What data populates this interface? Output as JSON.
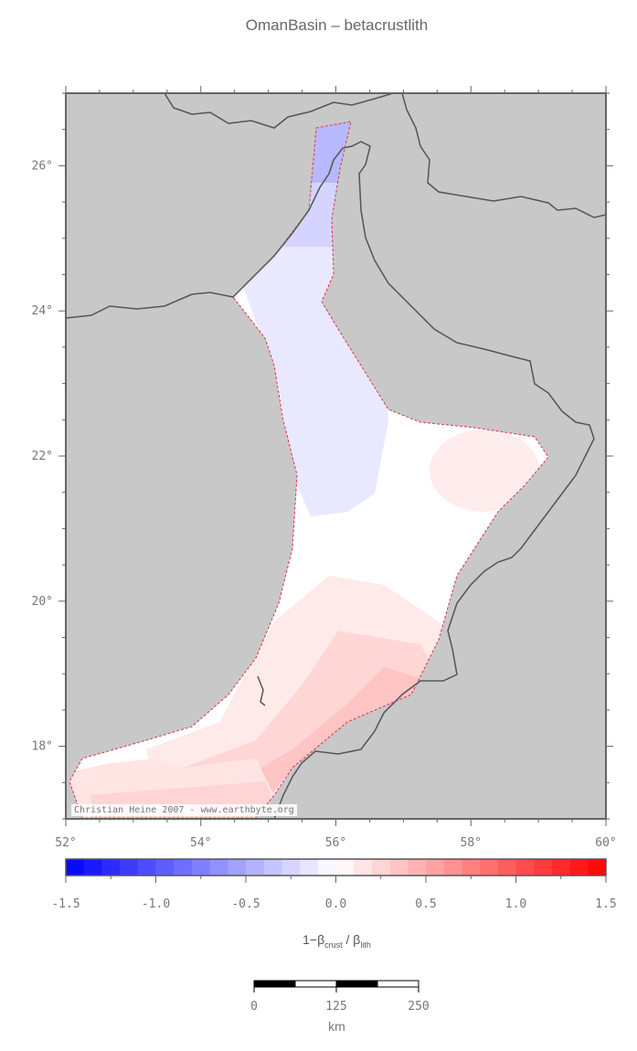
{
  "title": "OmanBasin – betacrustlith",
  "map": {
    "lon_ticks": [
      "52°",
      "54°",
      "56°",
      "58°",
      "60°"
    ],
    "lat_ticks": [
      "26°",
      "24°",
      "22°",
      "20°",
      "18°"
    ],
    "lon_range": [
      52,
      60
    ],
    "lat_range": [
      17,
      27
    ],
    "land_color": "#c8c8c8",
    "coast_color": "#555555",
    "outline_color": "#e0304a",
    "credit": "Christian Heine 2007 - www.earthbyte.org"
  },
  "colorbar": {
    "ticks": [
      "-1.5",
      "-1.0",
      "-0.5",
      "0.0",
      "0.5",
      "1.0",
      "1.5"
    ],
    "range": [
      -1.5,
      1.5
    ],
    "label_main": "1−β",
    "label_sub1": "crust",
    "label_mid": " / β",
    "label_sub2": "lith",
    "low_color": "#0000ff",
    "mid_color": "#ffffff",
    "high_color": "#ff0000"
  },
  "scalebar": {
    "ticks": [
      "0",
      "125",
      "250"
    ],
    "unit": "km"
  }
}
